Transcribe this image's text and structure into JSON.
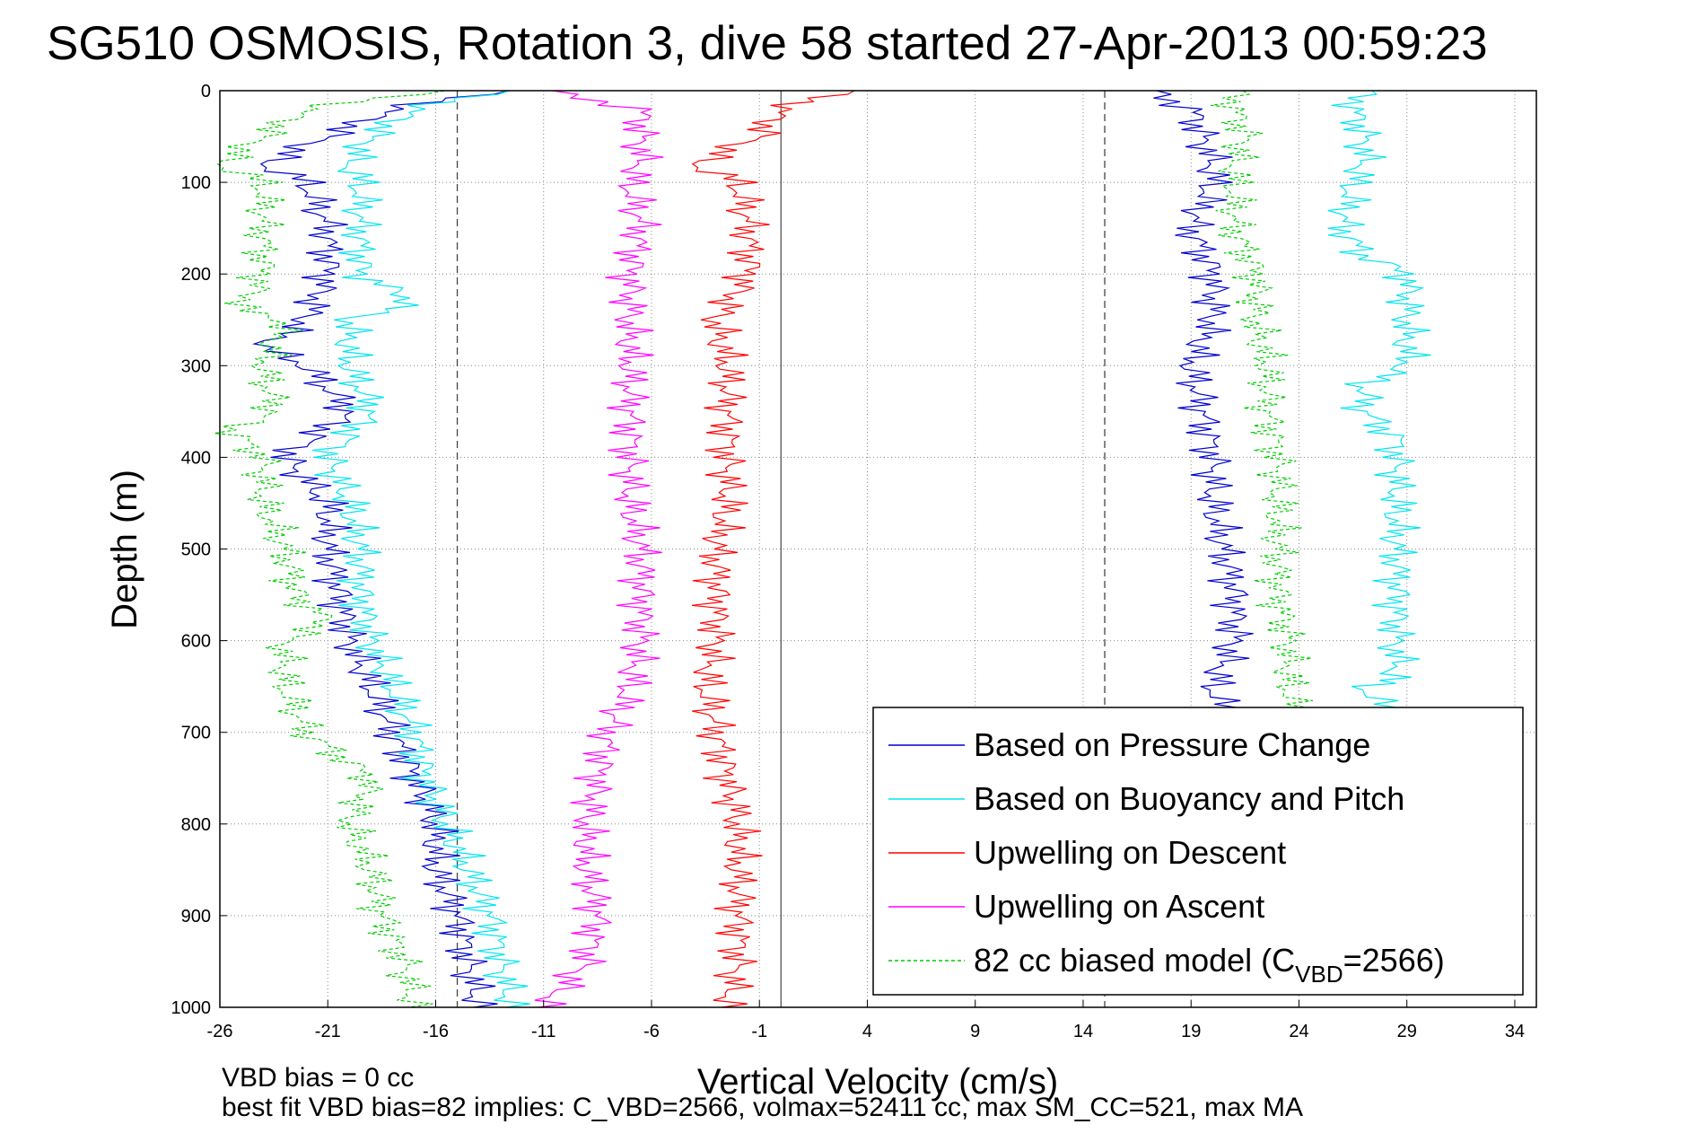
{
  "chart_data": {
    "type": "line",
    "title": "SG510 OSMOSIS, Rotation 3, dive 58 started 27-Apr-2013 00:59:23",
    "xlabel": "Vertical Velocity (cm/s)",
    "ylabel": "Depth (m)",
    "xlim": [
      -26,
      35
    ],
    "ylim": [
      0,
      1000
    ],
    "y_reversed": true,
    "grid": true,
    "xticks": [
      -26,
      -21,
      -16,
      -11,
      -6,
      -1,
      4,
      9,
      14,
      19,
      24,
      29,
      34
    ],
    "yticks": [
      0,
      100,
      200,
      300,
      400,
      500,
      600,
      700,
      800,
      900,
      1000
    ],
    "reference_lines": [
      {
        "x": -15,
        "style": "dashed"
      },
      {
        "x": 15,
        "style": "dashed"
      },
      {
        "x": 0,
        "style": "solid"
      }
    ],
    "legend_position": "bottom-right",
    "series": [
      {
        "name": "Based on Pressure Change",
        "color": "#0000cc",
        "descent": {
          "depth": [
            0,
            20,
            50,
            80,
            100,
            150,
            200,
            250,
            280,
            300,
            350,
            400,
            450,
            500,
            550,
            600,
            650,
            700,
            750,
            800,
            850,
            900,
            950,
            1000
          ],
          "values": [
            -13,
            -18,
            -21,
            -24,
            -22,
            -21,
            -21,
            -22,
            -24,
            -22,
            -20,
            -23,
            -21,
            -21,
            -20.5,
            -20,
            -19,
            -18,
            -17,
            -16,
            -16,
            -15,
            -14.5,
            -14
          ]
        },
        "ascent": {
          "depth": [
            0,
            20,
            50,
            80,
            100,
            150,
            200,
            250,
            300,
            350,
            400,
            450,
            500,
            550,
            600,
            650,
            700
          ],
          "values": [
            17,
            19,
            19.5,
            20,
            20,
            19,
            20,
            20,
            19,
            19.5,
            20,
            20,
            20.5,
            21,
            21,
            20,
            21
          ]
        }
      },
      {
        "name": "Based on Buoyancy and Pitch",
        "color": "#00e5ee",
        "descent": {
          "depth": [
            0,
            20,
            50,
            80,
            100,
            150,
            200,
            230,
            250,
            300,
            350,
            400,
            450,
            500,
            550,
            600,
            650,
            700,
            750,
            800,
            850,
            900,
            950,
            1000
          ],
          "values": [
            -13,
            -17,
            -19,
            -20,
            -19.5,
            -19.5,
            -19.5,
            -17,
            -20,
            -20,
            -19,
            -21,
            -20,
            -19.5,
            -19.5,
            -19,
            -18,
            -17,
            -16.5,
            -15.5,
            -14.5,
            -13.5,
            -13,
            -12.5
          ]
        },
        "ascent": {
          "depth": [
            0,
            20,
            50,
            80,
            100,
            150,
            180,
            200,
            250,
            300,
            320,
            350,
            380,
            400,
            450,
            500,
            550,
            600,
            640,
            650,
            700
          ],
          "values": [
            27,
            26.5,
            27,
            27,
            26.5,
            26,
            27,
            29,
            29,
            29,
            27,
            27,
            28.5,
            28.5,
            28.5,
            28.5,
            28.5,
            28.5,
            28.5,
            27,
            29
          ]
        }
      },
      {
        "name": "Upwelling on Descent",
        "color": "#ff0000",
        "depth": [
          0,
          20,
          50,
          80,
          100,
          150,
          200,
          250,
          300,
          350,
          400,
          450,
          500,
          550,
          600,
          650,
          700,
          750,
          800,
          850,
          900,
          950,
          1000
        ],
        "values": [
          3,
          0,
          -1,
          -4,
          -2,
          -1.5,
          -1.5,
          -3,
          -2.5,
          -2.5,
          -2.5,
          -2.5,
          -3,
          -3,
          -3,
          -3.5,
          -3,
          -2.5,
          -2,
          -2,
          -2,
          -2,
          -2.5
        ]
      },
      {
        "name": "Upwelling on Ascent",
        "color": "#ff00ff",
        "depth": [
          0,
          20,
          50,
          80,
          100,
          150,
          200,
          250,
          300,
          350,
          400,
          450,
          500,
          550,
          600,
          650,
          700,
          750,
          800,
          850,
          900,
          950,
          1000
        ],
        "values": [
          -11,
          -6.5,
          -6.5,
          -6.5,
          -7,
          -6.5,
          -7,
          -7,
          -7,
          -7,
          -7,
          -7,
          -6.5,
          -6.5,
          -6.5,
          -7,
          -8,
          -8.5,
          -9,
          -9,
          -8.5,
          -9,
          -11
        ]
      },
      {
        "name": "82 cc biased model (C_VBD=2566)",
        "legend_label": {
          "prefix": "82 cc biased model (C",
          "subscript": "VBD",
          "suffix": "=2566)"
        },
        "color": "#00cc00",
        "style": "dashed",
        "descent": {
          "depth": [
            0,
            20,
            50,
            80,
            100,
            150,
            200,
            240,
            250,
            300,
            350,
            370,
            400,
            450,
            500,
            550,
            580,
            600,
            650,
            700,
            750,
            800,
            850,
            900,
            950,
            1000
          ],
          "values": [
            -16,
            -22,
            -24,
            -26,
            -24,
            -24,
            -24,
            -25,
            -23,
            -24,
            -23.5,
            -25.5,
            -24,
            -24,
            -23,
            -22.5,
            -21,
            -23,
            -23,
            -22,
            -19,
            -20,
            -19,
            -18.5,
            -17.5,
            -17
          ]
        },
        "ascent": {
          "depth": [
            0,
            20,
            50,
            80,
            100,
            150,
            200,
            250,
            300,
            350,
            400,
            450,
            500,
            550,
            600,
            650,
            700
          ],
          "values": [
            21,
            21,
            21.5,
            21,
            21,
            21,
            22,
            22,
            22.5,
            22.5,
            23,
            23,
            23,
            23,
            23.5,
            23.5,
            24
          ]
        }
      }
    ]
  },
  "footer": {
    "line1": "VBD bias = 0 cc",
    "line2": "best fit VBD bias=82 implies: C_VBD=2566, volmax=52411 cc, max SM_CC=521, max MA"
  }
}
